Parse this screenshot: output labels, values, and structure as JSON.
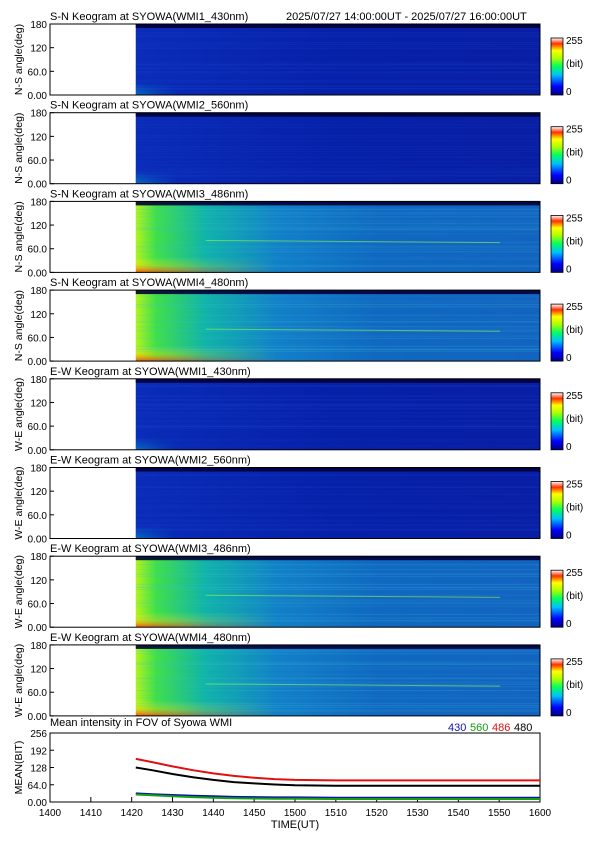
{
  "header": {
    "first_title": "S-N Keogram at SYOWA(WMI1_430nm)",
    "time_range": "2025/07/27 14:00:00UT - 2025/07/27 16:00:00UT"
  },
  "colorbar": {
    "max_label": "255",
    "unit_label": "(bit)",
    "min_label": "0"
  },
  "chart_data": [
    {
      "type": "heatmap",
      "title": "S-N Keogram at SYOWA(WMI1_430nm)",
      "ylabel": "N-S angle(deg)",
      "ytick_labels": [
        "180",
        "120",
        "60.0",
        "0.00"
      ],
      "ylim": [
        0,
        180
      ],
      "xlim": [
        1400,
        1600
      ],
      "data_start": 1421,
      "colorscale": [
        0,
        255
      ],
      "intensity": "low"
    },
    {
      "type": "heatmap",
      "title": "S-N Keogram at SYOWA(WMI2_560nm)",
      "ylabel": "N-S angle(deg)",
      "ytick_labels": [
        "180",
        "120",
        "60.0",
        "0.00"
      ],
      "ylim": [
        0,
        180
      ],
      "xlim": [
        1400,
        1600
      ],
      "data_start": 1421,
      "colorscale": [
        0,
        255
      ],
      "intensity": "low"
    },
    {
      "type": "heatmap",
      "title": "S-N Keogram at SYOWA(WMI3_486nm)",
      "ylabel": "N-S angle(deg)",
      "ytick_labels": [
        "180",
        "120",
        "60.0",
        "0.00"
      ],
      "ylim": [
        0,
        180
      ],
      "xlim": [
        1400,
        1600
      ],
      "data_start": 1421,
      "colorscale": [
        0,
        255
      ],
      "intensity": "high"
    },
    {
      "type": "heatmap",
      "title": "S-N Keogram at SYOWA(WMI4_480nm)",
      "ylabel": "N-S angle(deg)",
      "ytick_labels": [
        "180",
        "120",
        "60.0",
        "0.00"
      ],
      "ylim": [
        0,
        180
      ],
      "xlim": [
        1400,
        1600
      ],
      "data_start": 1421,
      "colorscale": [
        0,
        255
      ],
      "intensity": "high"
    },
    {
      "type": "heatmap",
      "title": "E-W Keogram at SYOWA(WMI1_430nm)",
      "ylabel": "W-E angle(deg)",
      "ytick_labels": [
        "180",
        "120",
        "60.0",
        "0.00"
      ],
      "ylim": [
        0,
        180
      ],
      "xlim": [
        1400,
        1600
      ],
      "data_start": 1421,
      "colorscale": [
        0,
        255
      ],
      "intensity": "low"
    },
    {
      "type": "heatmap",
      "title": "E-W Keogram at SYOWA(WMI2_560nm)",
      "ylabel": "W-E angle(deg)",
      "ytick_labels": [
        "180",
        "120",
        "60.0",
        "0.00"
      ],
      "ylim": [
        0,
        180
      ],
      "xlim": [
        1400,
        1600
      ],
      "data_start": 1421,
      "colorscale": [
        0,
        255
      ],
      "intensity": "low"
    },
    {
      "type": "heatmap",
      "title": "E-W Keogram at SYOWA(WMI3_486nm)",
      "ylabel": "W-E angle(deg)",
      "ytick_labels": [
        "180",
        "120",
        "60.0",
        "0.00"
      ],
      "ylim": [
        0,
        180
      ],
      "xlim": [
        1400,
        1600
      ],
      "data_start": 1421,
      "colorscale": [
        0,
        255
      ],
      "intensity": "high"
    },
    {
      "type": "heatmap",
      "title": "E-W Keogram at SYOWA(WMI4_480nm)",
      "ylabel": "W-E angle(deg)",
      "ytick_labels": [
        "180",
        "120",
        "60.0",
        "0.00"
      ],
      "ylim": [
        0,
        180
      ],
      "xlim": [
        1400,
        1600
      ],
      "data_start": 1421,
      "colorscale": [
        0,
        255
      ],
      "intensity": "high"
    },
    {
      "type": "line",
      "title": "Mean intensity in FOV of Syowa WMI",
      "ylabel": "MEAN(BIT)",
      "xlabel": "TIME(UT)",
      "ylim": [
        0,
        256
      ],
      "xlim": [
        1400,
        1600
      ],
      "yticks": [
        "256",
        "192",
        "128",
        "64.0",
        "0.00"
      ],
      "xticks": [
        "1400",
        "1410",
        "1420",
        "1430",
        "1440",
        "1450",
        "1500",
        "1510",
        "1520",
        "1530",
        "1540",
        "1550",
        "1600"
      ],
      "x": [
        1421,
        1425,
        1430,
        1435,
        1440,
        1445,
        1450,
        1455,
        1500,
        1510,
        1520,
        1530,
        1540,
        1550,
        1600
      ],
      "series": [
        {
          "name": "430",
          "color": "#1010b0",
          "values": [
            32,
            29,
            26,
            23,
            21,
            19,
            18,
            17,
            17,
            16,
            16,
            16,
            16,
            16,
            16
          ]
        },
        {
          "name": "560",
          "color": "#10a010",
          "values": [
            28,
            25,
            21,
            18,
            16,
            14,
            13,
            12,
            12,
            11,
            11,
            11,
            11,
            11,
            11
          ]
        },
        {
          "name": "486",
          "color": "#e01010",
          "values": [
            160,
            148,
            132,
            118,
            106,
            97,
            90,
            85,
            82,
            80,
            80,
            80,
            80,
            80,
            80
          ]
        },
        {
          "name": "480",
          "color": "#000000",
          "values": [
            128,
            118,
            104,
            92,
            82,
            74,
            69,
            65,
            62,
            60,
            60,
            60,
            60,
            60,
            60
          ]
        }
      ]
    }
  ]
}
